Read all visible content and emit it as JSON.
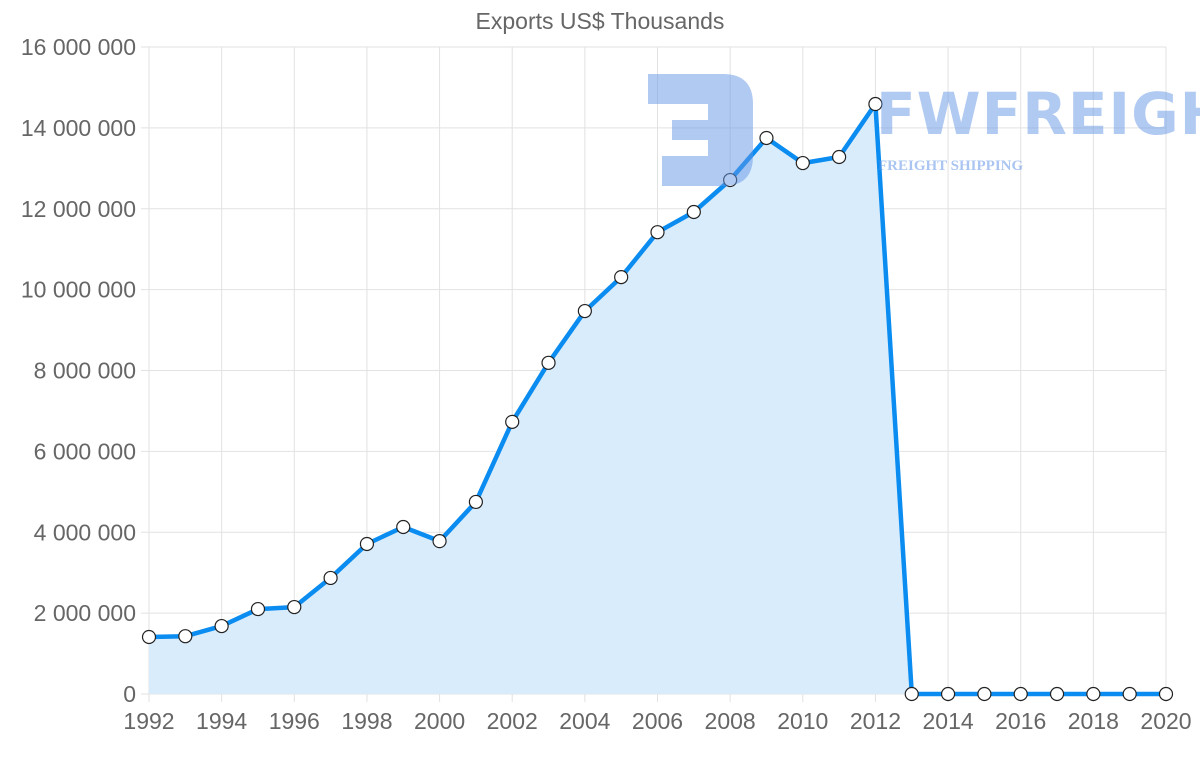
{
  "chart_data": {
    "type": "area",
    "title": "Exports US$ Thousands",
    "xlabel": "",
    "ylabel": "",
    "x": [
      1992,
      1993,
      1994,
      1995,
      1996,
      1997,
      1998,
      1999,
      2000,
      2001,
      2002,
      2003,
      2004,
      2005,
      2006,
      2007,
      2008,
      2009,
      2010,
      2011,
      2012,
      2013,
      2014,
      2015,
      2016,
      2017,
      2018,
      2019,
      2020
    ],
    "series": [
      {
        "name": "Exports US$ Thousands",
        "color": "#0a8cf0",
        "fill": "#d9ecfc",
        "values": [
          1410000,
          1430000,
          1680000,
          2100000,
          2150000,
          2870000,
          3710000,
          4130000,
          3780000,
          4750000,
          6730000,
          8190000,
          9470000,
          10310000,
          11420000,
          11920000,
          12710000,
          13750000,
          13130000,
          13280000,
          14590000,
          0,
          0,
          0,
          0,
          0,
          0,
          0,
          0
        ]
      }
    ],
    "ylim": [
      0,
      16000000
    ],
    "yticks": [
      0,
      2000000,
      4000000,
      6000000,
      8000000,
      10000000,
      12000000,
      14000000,
      16000000
    ],
    "ytick_labels": [
      "0",
      "2 000 000",
      "4 000 000",
      "6 000 000",
      "8 000 000",
      "10 000 000",
      "12 000 000",
      "14 000 000",
      "16 000 000"
    ],
    "xtick_labels": [
      "1992",
      "1994",
      "1996",
      "1998",
      "2000",
      "2002",
      "2004",
      "2006",
      "2008",
      "2010",
      "2012",
      "2014",
      "2016",
      "2018",
      "2020"
    ],
    "grid": true,
    "legend": "none"
  },
  "watermark": {
    "brand": "FWFREIGHT",
    "tagline": "FREIGHT SHIPPING"
  }
}
